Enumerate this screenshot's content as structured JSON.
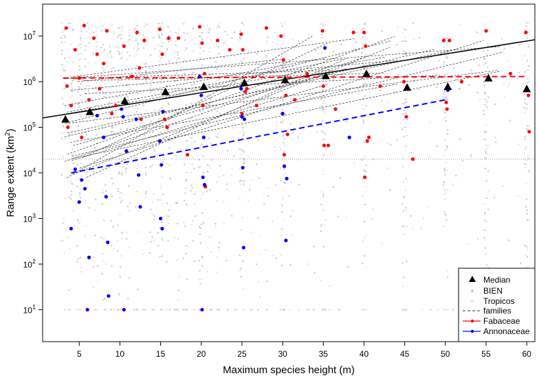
{
  "chart_data": {
    "type": "scatter",
    "xlabel": "Maximum species height (m)",
    "ylabel_main": "Range extent (km",
    "ylabel_sup": "2",
    "ylabel_close": ")",
    "x_ticks": [
      5,
      10,
      15,
      20,
      25,
      30,
      35,
      40,
      45,
      50,
      55,
      60
    ],
    "x_range": [
      0.5,
      61
    ],
    "y_log": true,
    "y_range_log10": [
      0.3,
      7.7
    ],
    "y_ticks": [
      {
        "base": "10",
        "exp": "1",
        "value": 10
      },
      {
        "base": "10",
        "exp": "2",
        "value": 100
      },
      {
        "base": "10",
        "exp": "3",
        "value": 1000
      },
      {
        "base": "10",
        "exp": "4",
        "value": 10000
      },
      {
        "base": "10",
        "exp": "5",
        "value": 100000
      },
      {
        "base": "10",
        "exp": "6",
        "value": 1000000
      },
      {
        "base": "10",
        "exp": "7",
        "value": 10000000
      }
    ],
    "reference_line_y": 20000,
    "median_trend": {
      "x": [
        0.5,
        61
      ],
      "y": [
        160000,
        8300000
      ]
    },
    "fabaceae_trend": {
      "x": [
        3,
        60
      ],
      "y": [
        1200000,
        1300000
      ]
    },
    "annonaceae_trend": {
      "x": [
        4,
        50
      ],
      "y": [
        10000,
        400000
      ]
    },
    "median": {
      "name": "Median",
      "x": [
        3.3,
        6.3,
        10.6,
        15.6,
        20.3,
        25.3,
        30.3,
        35.3,
        40.3,
        45.3,
        50.3,
        55.3,
        60.0
      ],
      "y": [
        150000,
        220000,
        380000,
        600000,
        780000,
        950000,
        1100000,
        1350000,
        1500000,
        750000,
        780000,
        1200000,
        700000
      ]
    },
    "fabaceae": {
      "name": "Fabaceae",
      "x": [
        3.4,
        3.5,
        4.0,
        4.5,
        5.0,
        5.6,
        6.2,
        6.8,
        7.5,
        8.0,
        8.4,
        9.0,
        10.5,
        10.8,
        12.1,
        12.4,
        14.9,
        15.2,
        15.5,
        16.0,
        19.8,
        20.1,
        20.4,
        20.2,
        24.9,
        25.1,
        25.4,
        25.0,
        28.0,
        29.8,
        30.1,
        30.4,
        30.2,
        34.9,
        35.1,
        35.0,
        40.0,
        40.2,
        40.4,
        40.1,
        44.9,
        45.2,
        49.8,
        50.1,
        50.2,
        55.0,
        59.9,
        60.2,
        60.3,
        3.6,
        5.3,
        7.2,
        9.5,
        11.5,
        13.0,
        17.2,
        18.3,
        22.0,
        23.5,
        26.8,
        31.5,
        33.0,
        36.5,
        38.7,
        42.0,
        46.0,
        52.0,
        58.0,
        20.5,
        15.8,
        12.6,
        30.6,
        40.6,
        25.6,
        35.6,
        50.5
      ],
      "y": [
        15000000,
        800000,
        300000,
        5000000,
        1200000,
        17000000,
        400000,
        9000000,
        700000,
        2500000,
        13000000,
        200000,
        6000000,
        30000,
        12000000,
        2000000,
        14000000,
        4000000,
        150000,
        9000000,
        16000000,
        7000000,
        1500000,
        300000,
        11000000,
        5000000,
        600000,
        200000,
        15000000,
        10000000,
        3000000,
        500000,
        25000,
        13000000,
        40000,
        800000,
        12000000,
        6000000,
        50000,
        8000,
        1000000,
        170000,
        8000000,
        350000,
        250000,
        13000000,
        12000000,
        500000,
        80000,
        100000,
        60000,
        4000000,
        300000,
        1300000,
        8000000,
        9000000,
        25000,
        8000000,
        5000000,
        300000,
        400000,
        1500000,
        250000,
        12000000,
        800000,
        20000,
        1000000,
        1500000,
        5000,
        100000,
        150000,
        70000,
        60000,
        700000,
        40000,
        8000000
      ]
    },
    "annonaceae": {
      "name": "Annonaceae",
      "x": [
        4.0,
        4.5,
        5.0,
        5.3,
        5.7,
        6.2,
        6.0,
        7.2,
        8.0,
        8.3,
        8.5,
        8.6,
        10.2,
        10.5,
        10.4,
        10.8,
        12.0,
        12.3,
        12.5,
        14.9,
        15.1,
        15.2,
        15.0,
        19.8,
        20.0,
        20.2,
        20.1,
        20.4,
        24.9,
        25.0,
        25.1,
        25.2,
        30.0,
        30.2,
        30.4,
        35.2,
        38.2,
        50.3,
        15.3,
        20.3,
        25.3,
        30.5
      ],
      "y": [
        600,
        12000,
        2300,
        7000,
        4500,
        140,
        10,
        180000,
        60000,
        3000,
        300,
        20,
        250000,
        10,
        170000,
        30000,
        150000,
        9000,
        1800,
        50000,
        15000,
        600,
        1000,
        1300000,
        500000,
        8000,
        10,
        5500,
        700000,
        170000,
        13000,
        230,
        200000,
        14000,
        330,
        5500000,
        60000,
        650000,
        220000,
        60000,
        150000,
        7500
      ]
    },
    "legend": [
      "Median",
      "BIEN",
      "Tropicos",
      "families",
      "Fabaceae",
      "Annonaceae"
    ],
    "legend_position": "bottom-right",
    "colors": {
      "median": "#000000",
      "fabaceae": "#ff0000",
      "annonaceae": "#0000ff",
      "bien": "#c8c8c8",
      "tropicos": "#e2e2e2",
      "families": "#333333",
      "reference": "#9a9a9a"
    }
  }
}
